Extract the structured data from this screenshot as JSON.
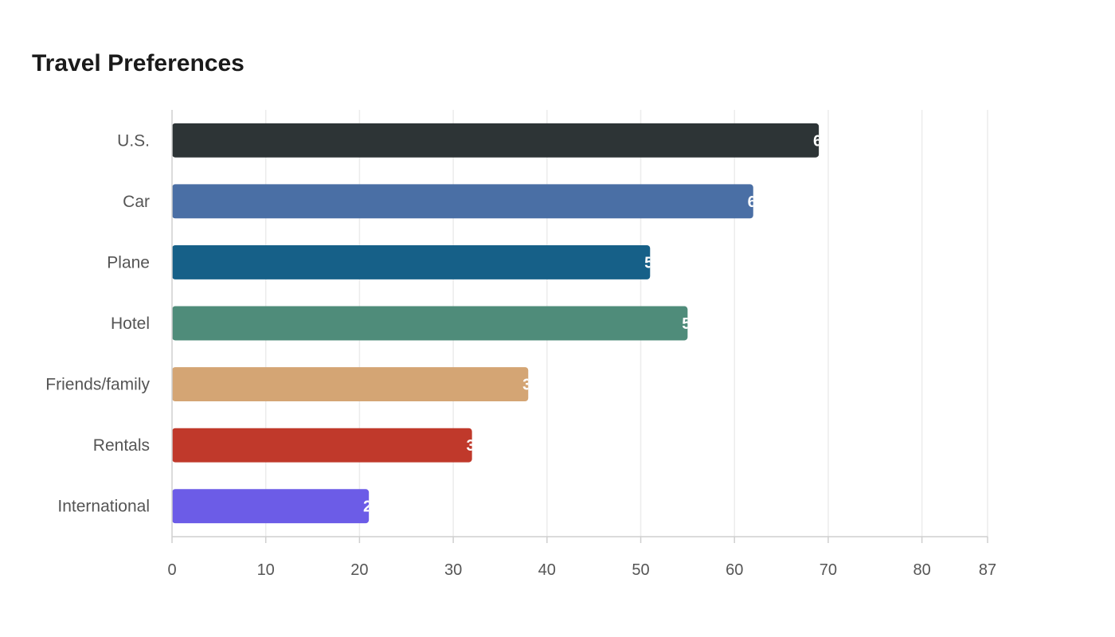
{
  "chart_data": {
    "type": "bar",
    "orientation": "horizontal",
    "title": "Travel Preferences",
    "categories": [
      "U.S.",
      "Car",
      "Plane",
      "Hotel",
      "Friends/family",
      "Rentals",
      "International"
    ],
    "values": [
      69,
      62,
      51,
      55,
      38,
      32,
      21
    ],
    "colors": [
      "#2d3436",
      "#4a6fa5",
      "#166088",
      "#4f8c7a",
      "#d4a574",
      "#c0392b",
      "#6c5ce7"
    ],
    "xlim": [
      0,
      87
    ],
    "xticks": [
      0,
      10,
      20,
      30,
      40,
      50,
      60,
      70,
      80,
      87
    ],
    "grid": true,
    "legend": "none"
  }
}
